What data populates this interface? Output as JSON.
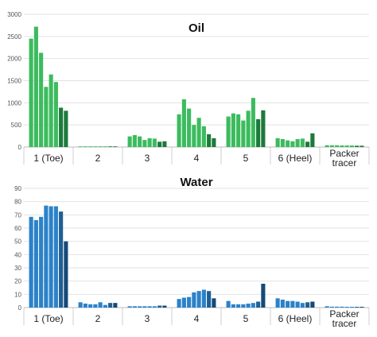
{
  "chart_data": [
    {
      "type": "bar",
      "title": "Oil",
      "xlabel": "",
      "ylabel": "",
      "ylim": [
        0,
        3000
      ],
      "yticks": [
        0,
        500,
        1000,
        1500,
        2000,
        2500,
        3000
      ],
      "grid": true,
      "categories": [
        "1 (Toe)",
        "2",
        "3",
        "4",
        "5",
        "6 (Heel)",
        "Packer tracer"
      ],
      "values": [
        [
          2450,
          2720,
          2130,
          1360,
          1640,
          1470,
          890,
          820
        ],
        [
          10,
          10,
          10,
          10,
          10,
          10,
          10,
          10
        ],
        [
          240,
          270,
          240,
          160,
          200,
          190,
          120,
          130
        ],
        [
          740,
          1080,
          870,
          500,
          660,
          470,
          290,
          200
        ],
        [
          690,
          760,
          740,
          600,
          820,
          1110,
          630,
          830
        ],
        [
          200,
          180,
          150,
          130,
          180,
          190,
          120,
          310
        ],
        [
          40,
          40,
          40,
          35,
          35,
          35,
          30,
          30
        ]
      ],
      "colors": [
        "#3cbb5e",
        "#3cbb5e",
        "#3cbb5e",
        "#3cbb5e",
        "#3cbb5e",
        "#3cbb5e",
        "#1b7a3a",
        "#1b7a3a"
      ]
    },
    {
      "type": "bar",
      "title": "Water",
      "xlabel": "",
      "ylabel": "",
      "ylim": [
        0,
        90
      ],
      "yticks": [
        0,
        10,
        20,
        30,
        40,
        50,
        60,
        70,
        80,
        90
      ],
      "grid": true,
      "categories": [
        "1 (Toe)",
        "2",
        "3",
        "4",
        "5",
        "6 (Heel)",
        "Packer tracer"
      ],
      "values": [
        [
          68.5,
          66,
          68.5,
          77,
          76.5,
          76.5,
          72.5,
          50
        ],
        [
          4,
          3,
          2.5,
          2.5,
          4,
          2,
          3.5,
          3.5
        ],
        [
          1,
          1,
          1,
          1,
          1,
          1,
          1.5,
          1.5
        ],
        [
          6.5,
          7.5,
          8,
          11.5,
          12.5,
          13.5,
          12.5,
          7
        ],
        [
          5,
          2.5,
          2.5,
          2.5,
          3,
          3.5,
          4.5,
          18
        ],
        [
          7,
          6,
          5,
          5,
          4.5,
          3.5,
          4,
          4.5
        ],
        [
          1,
          0.7,
          0.7,
          0.7,
          0.6,
          0.6,
          0.6,
          0.6
        ]
      ],
      "colors": [
        "#2b82c9",
        "#2b82c9",
        "#2b82c9",
        "#2b82c9",
        "#2b82c9",
        "#2b82c9",
        "#1f5f94",
        "#154a78"
      ]
    }
  ]
}
